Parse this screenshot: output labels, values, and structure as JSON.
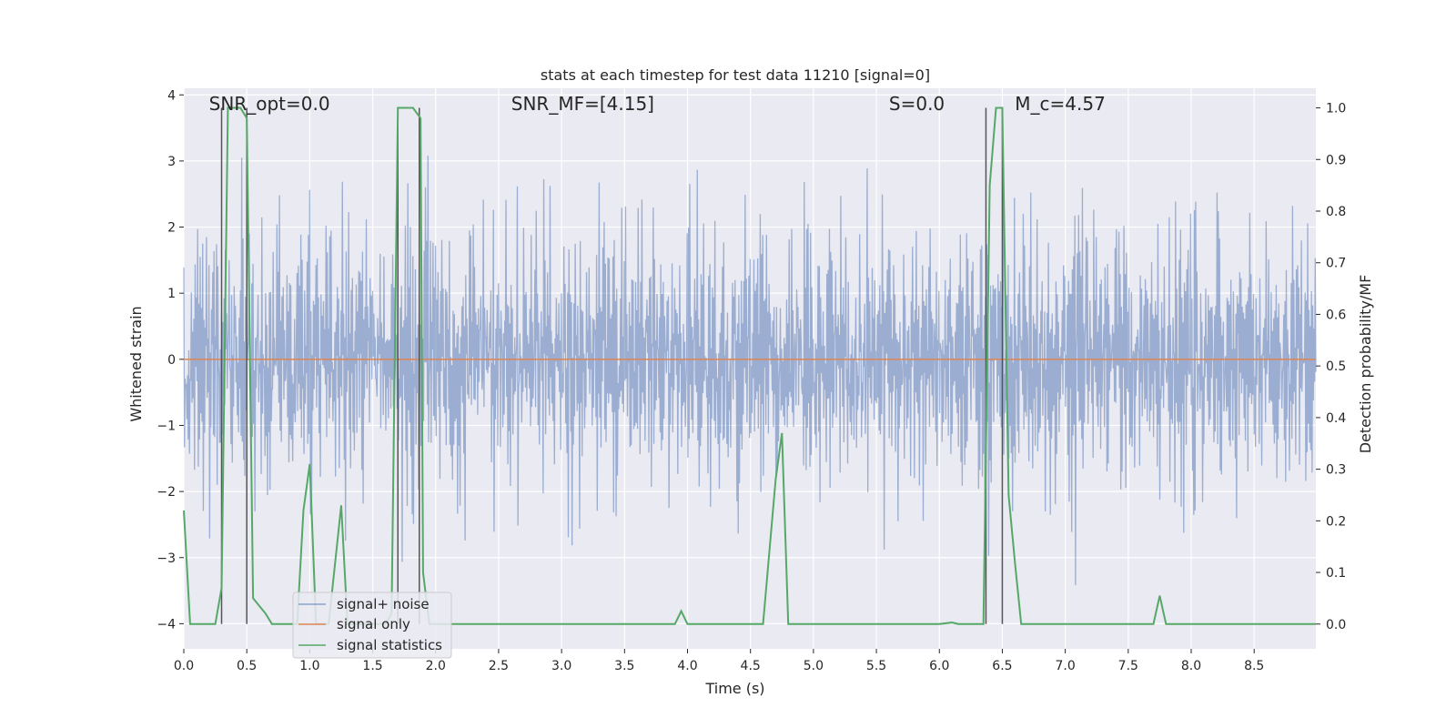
{
  "chart_data": {
    "type": "line",
    "title": "stats at each timestep for test data 11210 [signal=0]",
    "xlabel": "Time (s)",
    "ylabel": "Whitened strain",
    "y2label": "Detection probability/MF",
    "xlim": [
      0.0,
      8.99
    ],
    "ylim": [
      -4.38,
      4.1
    ],
    "y2lim": [
      -0.048,
      1.038
    ],
    "xticks": [
      0.0,
      0.5,
      1.0,
      1.5,
      2.0,
      2.5,
      3.0,
      3.5,
      4.0,
      4.5,
      5.0,
      5.5,
      6.0,
      6.5,
      7.0,
      7.5,
      8.0,
      8.5
    ],
    "xtick_labels": [
      "0.0",
      "0.5",
      "1.0",
      "1.5",
      "2.0",
      "2.5",
      "3.0",
      "3.5",
      "4.0",
      "4.5",
      "5.0",
      "5.5",
      "6.0",
      "6.5",
      "7.0",
      "7.5",
      "8.0",
      "8.5"
    ],
    "yticks": [
      4,
      3,
      2,
      1,
      0,
      -1,
      -2,
      -3,
      -4
    ],
    "ytick_labels": [
      "4",
      "3",
      "2",
      "1",
      "0",
      "−1",
      "−2",
      "−3",
      "−4"
    ],
    "y2ticks": [
      1.0,
      0.9,
      0.8,
      0.7,
      0.6,
      0.5,
      0.4,
      0.3,
      0.2,
      0.1,
      0.0
    ],
    "y2tick_labels": [
      "1.0",
      "0.9",
      "0.8",
      "0.7",
      "0.6",
      "0.5",
      "0.4",
      "0.3",
      "0.2",
      "0.1",
      "0.0"
    ],
    "grid": true,
    "legend_position": "lower-left",
    "annotations": [
      {
        "x": 0.2,
        "y": 3.85,
        "text": "SNR_opt=0.0"
      },
      {
        "x": 2.6,
        "y": 3.85,
        "text": "SNR_MF=[4.15]"
      },
      {
        "x": 5.6,
        "y": 3.85,
        "text": "S=0.0"
      },
      {
        "x": 6.6,
        "y": 3.85,
        "text": "M_c=4.57"
      }
    ],
    "vlines_secondary": [
      {
        "x": 0.3,
        "ymin": 0.0,
        "ymax": 1.0
      },
      {
        "x": 0.5,
        "ymin": 0.0,
        "ymax": 1.0
      },
      {
        "x": 1.7,
        "ymin": 0.0,
        "ymax": 1.0
      },
      {
        "x": 1.87,
        "ymin": 0.0,
        "ymax": 1.0
      },
      {
        "x": 6.37,
        "ymin": 0.0,
        "ymax": 1.0
      },
      {
        "x": 6.5,
        "ymin": 0.0,
        "ymax": 1.0
      }
    ],
    "series": [
      {
        "name": "signal+ noise",
        "axis": "left",
        "color": "#4c72b0",
        "description_values": {
          "typical_range": [
            -2.3,
            2.6
          ],
          "max": 3.7,
          "min": -4.0,
          "n_points": 1800
        }
      },
      {
        "name": "signal only",
        "axis": "left",
        "color": "#dd8452",
        "x": [
          0.0,
          8.99
        ],
        "values": [
          0.0,
          0.0
        ]
      },
      {
        "name": "signal statistics",
        "axis": "right",
        "color": "#55a868",
        "x": [
          0.0,
          0.05,
          0.25,
          0.3,
          0.35,
          0.45,
          0.5,
          0.55,
          0.65,
          0.7,
          0.9,
          0.95,
          1.0,
          1.05,
          1.15,
          1.25,
          1.3,
          1.6,
          1.65,
          1.7,
          1.75,
          1.82,
          1.88,
          1.9,
          1.95,
          2.0,
          2.5,
          3.0,
          3.5,
          3.9,
          3.95,
          4.0,
          4.5,
          4.6,
          4.7,
          4.75,
          4.8,
          4.85,
          5.5,
          6.0,
          6.1,
          6.15,
          6.35,
          6.4,
          6.45,
          6.5,
          6.55,
          6.6,
          6.65,
          6.7,
          7.0,
          7.5,
          7.7,
          7.75,
          7.8,
          8.0,
          8.5,
          8.99
        ],
        "values": [
          0.22,
          0.0,
          0.0,
          0.07,
          1.0,
          1.0,
          0.98,
          0.05,
          0.02,
          0.0,
          0.0,
          0.22,
          0.31,
          0.0,
          0.0,
          0.23,
          0.0,
          0.0,
          0.02,
          1.0,
          1.0,
          1.0,
          0.98,
          0.1,
          0.0,
          0.0,
          0.0,
          0.0,
          0.0,
          0.0,
          0.025,
          0.0,
          0.0,
          0.0,
          0.28,
          0.37,
          0.0,
          0.0,
          0.0,
          0.0,
          0.003,
          0.0,
          0.0,
          0.85,
          1.0,
          1.0,
          0.25,
          0.12,
          0.0,
          0.0,
          0.0,
          0.0,
          0.0,
          0.055,
          0.0,
          0.0,
          0.0,
          0.0
        ]
      }
    ]
  }
}
